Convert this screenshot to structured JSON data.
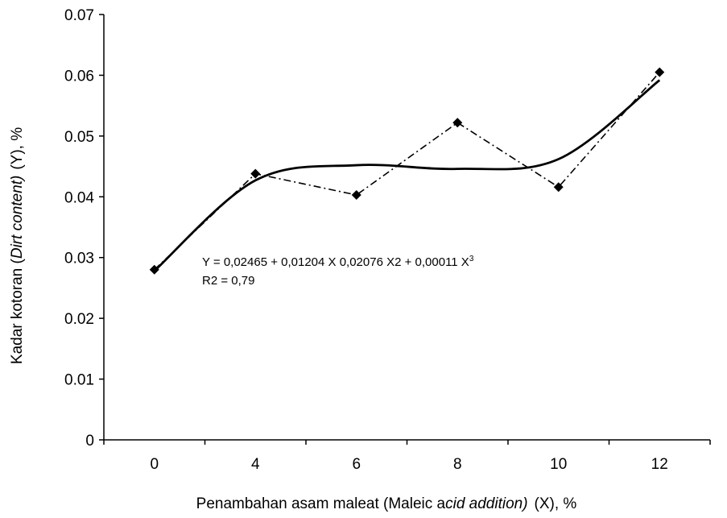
{
  "chart_data": {
    "type": "line",
    "xlabel": {
      "before": "Penambahan asam maleat (Maleic a",
      "italic": "cid addition)",
      "after": "(X), %"
    },
    "ylabel": {
      "before": "Kadar kotoran (",
      "italic": "Dirt content)",
      "after": "(Y), %"
    },
    "categories": [
      "0",
      "4",
      "6",
      "8",
      "10",
      "12"
    ],
    "ylim": [
      0,
      0.07
    ],
    "yticks": [
      "0",
      "0.01",
      "0.02",
      "0.03",
      "0.04",
      "0.05",
      "0.06",
      "0.07"
    ],
    "grid": false,
    "series": [
      {
        "style": "dash-dot with diamond markers",
        "color": "#000000",
        "values": [
          0.028,
          0.0438,
          0.0403,
          0.0522,
          0.0416,
          0.0605
        ]
      },
      {
        "style": "solid (cubic fit)",
        "color": "#000000",
        "values": [
          0.0278,
          0.0427,
          0.0452,
          0.0446,
          0.0462,
          0.0592
        ]
      }
    ],
    "annotation": {
      "equation_main": "Y = 0,02465 + 0,01204 X  0,02076 X2 + 0,00011 X",
      "equation_sup": "3",
      "r2": "R2  = 0,79"
    }
  }
}
